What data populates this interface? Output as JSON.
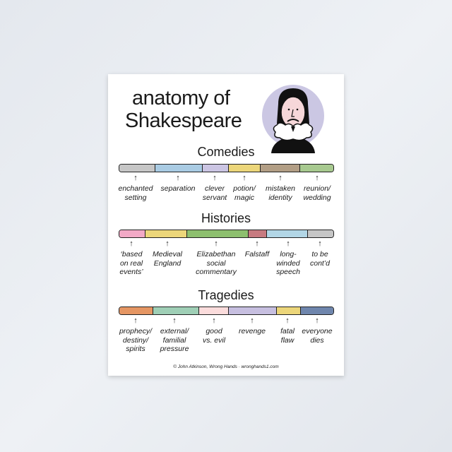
{
  "title": {
    "line1": "anatomy of",
    "line2": "Shakespeare"
  },
  "portrait": {
    "icon": "shakespeare-portrait",
    "circle_color": "#cbc7e3"
  },
  "sections": [
    {
      "name": "Comedies",
      "segments": [
        {
          "label": "enchanted\nsetting",
          "color": "#c6c6c6"
        },
        {
          "label": "separation",
          "color": "#a9cbe3"
        },
        {
          "label": "clever\nservant",
          "color": "#cbc5e3"
        },
        {
          "label": "potion/\nmagic",
          "color": "#ecd67a"
        },
        {
          "label": "mistaken\nidentity",
          "color": "#b29e85"
        },
        {
          "label": "reunion/\nwedding",
          "color": "#a7c98f"
        }
      ]
    },
    {
      "name": "Histories",
      "segments": [
        {
          "label": "‘based\non real\nevents’",
          "color": "#f2a9c6"
        },
        {
          "label": "Medieval\nEngland",
          "color": "#ecd67a"
        },
        {
          "label": "Elizabethan\nsocial\ncommentary",
          "color": "#8dbf6e"
        },
        {
          "label": "Falstaff",
          "color": "#c77a80"
        },
        {
          "label": "long-\nwinded\nspeech",
          "color": "#b2d6e6"
        },
        {
          "label": "to be\ncont’d",
          "color": "#c6c6c6"
        }
      ]
    },
    {
      "name": "Tragedies",
      "segments": [
        {
          "label": "prophecy/\ndestiny/\nspirits",
          "color": "#e59663"
        },
        {
          "label": "external/\nfamilial\npressure",
          "color": "#9fcfb6"
        },
        {
          "label": "good\nvs. evil",
          "color": "#fbdcdc"
        },
        {
          "label": "revenge",
          "color": "#c7bfe0"
        },
        {
          "label": "fatal\nflaw",
          "color": "#ecd67a"
        },
        {
          "label": "everyone\ndies",
          "color": "#6f86ad"
        }
      ]
    }
  ],
  "credit": "© John Atkinson, Wrong Hands · wronghands1.com"
}
